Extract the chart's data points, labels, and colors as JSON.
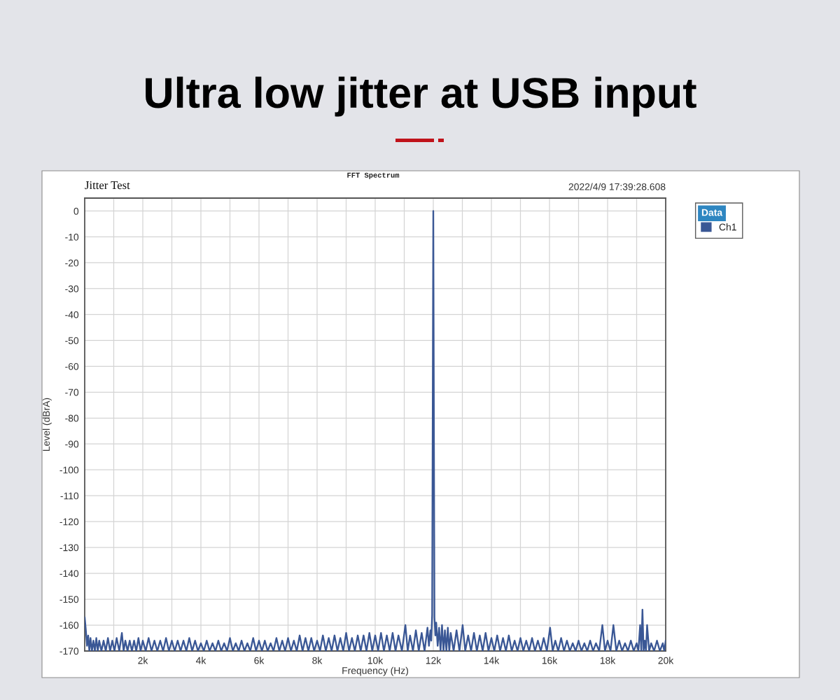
{
  "chart_data": {
    "type": "line",
    "title": "Ultra low jitter at USB input",
    "subtitle": "FFT Spectrum",
    "annotations": [
      "Jitter Test",
      "2022/4/9 17:39:28.608"
    ],
    "xlabel": "Frequency (Hz)",
    "ylabel": "Level (dBrA)",
    "legend_title": "Data",
    "legend": "right",
    "grid": true,
    "xlim": [
      0,
      20000
    ],
    "ylim": [
      -170,
      5
    ],
    "xticks": [
      {
        "value": 1000,
        "label": null
      },
      {
        "value": 2000,
        "label": "2k"
      },
      {
        "value": 3000,
        "label": null
      },
      {
        "value": 4000,
        "label": "4k"
      },
      {
        "value": 5000,
        "label": null
      },
      {
        "value": 6000,
        "label": "6k"
      },
      {
        "value": 7000,
        "label": null
      },
      {
        "value": 8000,
        "label": "8k"
      },
      {
        "value": 9000,
        "label": null
      },
      {
        "value": 10000,
        "label": "10k"
      },
      {
        "value": 11000,
        "label": null
      },
      {
        "value": 12000,
        "label": "12k"
      },
      {
        "value": 13000,
        "label": null
      },
      {
        "value": 14000,
        "label": "14k"
      },
      {
        "value": 15000,
        "label": null
      },
      {
        "value": 16000,
        "label": "16k"
      },
      {
        "value": 17000,
        "label": null
      },
      {
        "value": 18000,
        "label": "18k"
      },
      {
        "value": 19000,
        "label": null
      },
      {
        "value": 20000,
        "label": "20k"
      }
    ],
    "yticks": [
      0,
      -10,
      -20,
      -30,
      -40,
      -50,
      -60,
      -70,
      -80,
      -90,
      -100,
      -110,
      -120,
      -130,
      -140,
      -150,
      -160,
      -170
    ],
    "x": [
      0,
      40,
      80,
      120,
      160,
      200,
      250,
      300,
      350,
      400,
      450,
      500,
      575,
      650,
      725,
      800,
      875,
      950,
      1025,
      1100,
      1190,
      1280,
      1340,
      1400,
      1475,
      1550,
      1625,
      1700,
      1775,
      1850,
      1925,
      2000,
      2100,
      2200,
      2300,
      2400,
      2500,
      2600,
      2700,
      2800,
      2900,
      3000,
      3100,
      3200,
      3300,
      3400,
      3500,
      3600,
      3700,
      3800,
      3900,
      4000,
      4100,
      4200,
      4300,
      4400,
      4500,
      4600,
      4700,
      4800,
      4900,
      5000,
      5100,
      5200,
      5300,
      5400,
      5500,
      5600,
      5700,
      5800,
      5900,
      6000,
      6100,
      6200,
      6300,
      6400,
      6500,
      6600,
      6700,
      6800,
      6900,
      7000,
      7100,
      7200,
      7300,
      7400,
      7500,
      7600,
      7700,
      7800,
      7900,
      8000,
      8100,
      8200,
      8300,
      8400,
      8500,
      8600,
      8700,
      8800,
      8900,
      9000,
      9100,
      9200,
      9300,
      9400,
      9500,
      9600,
      9700,
      9800,
      9900,
      10000,
      10100,
      10200,
      10300,
      10400,
      10500,
      10600,
      10700,
      10800,
      10920,
      11040,
      11120,
      11200,
      11300,
      11400,
      11500,
      11600,
      11700,
      11800,
      11850,
      11900,
      11930,
      11960,
      12000,
      12040,
      12070,
      12100,
      12150,
      12200,
      12250,
      12300,
      12350,
      12400,
      12450,
      12500,
      12550,
      12600,
      12700,
      12800,
      12900,
      13010,
      13100,
      13200,
      13300,
      13400,
      13500,
      13600,
      13700,
      13800,
      13900,
      14000,
      14100,
      14200,
      14300,
      14400,
      14500,
      14600,
      14700,
      14800,
      14900,
      15000,
      15100,
      15200,
      15300,
      15400,
      15500,
      15600,
      15700,
      15800,
      15910,
      16020,
      16110,
      16200,
      16300,
      16400,
      16500,
      16600,
      16700,
      16800,
      16900,
      17000,
      17100,
      17200,
      17300,
      17400,
      17500,
      17600,
      17710,
      17820,
      17910,
      18000,
      18100,
      18200,
      18300,
      18400,
      18500,
      18600,
      18700,
      18800,
      18900,
      19000,
      19060,
      19120,
      19160,
      19200,
      19240,
      19280,
      19320,
      19360,
      19430,
      19500,
      19600,
      19700,
      19800,
      19900,
      19950,
      20000
    ],
    "series": [
      {
        "name": "Ch1",
        "color": "#3a5795",
        "values": [
          -157,
          -162,
          -168,
          -164,
          -170,
          -165,
          -170,
          -166,
          -170,
          -165,
          -170,
          -166,
          -170,
          -166,
          -170,
          -165,
          -170,
          -166,
          -170,
          -165,
          -170,
          -163,
          -170,
          -166,
          -170,
          -166,
          -170,
          -166,
          -170,
          -165,
          -170,
          -166,
          -170,
          -165,
          -170,
          -166,
          -170,
          -166,
          -170,
          -165,
          -170,
          -166,
          -170,
          -166,
          -170,
          -166,
          -170,
          -165,
          -170,
          -166,
          -170,
          -167,
          -170,
          -166,
          -170,
          -167,
          -170,
          -166,
          -170,
          -167,
          -170,
          -165,
          -170,
          -167,
          -170,
          -166,
          -170,
          -167,
          -170,
          -165,
          -170,
          -166,
          -170,
          -166,
          -170,
          -167,
          -170,
          -165,
          -170,
          -166,
          -170,
          -165,
          -170,
          -166,
          -170,
          -164,
          -170,
          -165,
          -170,
          -165,
          -170,
          -166,
          -170,
          -164,
          -170,
          -165,
          -170,
          -164,
          -170,
          -165,
          -170,
          -163,
          -170,
          -165,
          -170,
          -164,
          -170,
          -164,
          -170,
          -163,
          -170,
          -164,
          -170,
          -163,
          -170,
          -164,
          -170,
          -163,
          -170,
          -164,
          -170,
          -160,
          -170,
          -164,
          -170,
          -162,
          -170,
          -163,
          -170,
          -161,
          -168,
          -162,
          -166,
          -156,
          0,
          -157,
          -164,
          -159,
          -168,
          -161,
          -170,
          -160,
          -170,
          -162,
          -170,
          -161,
          -170,
          -163,
          -170,
          -162,
          -170,
          -160,
          -170,
          -164,
          -170,
          -163,
          -170,
          -164,
          -170,
          -163,
          -170,
          -165,
          -170,
          -164,
          -170,
          -165,
          -170,
          -164,
          -170,
          -166,
          -170,
          -165,
          -170,
          -166,
          -170,
          -165,
          -170,
          -166,
          -170,
          -165,
          -170,
          -161,
          -170,
          -166,
          -170,
          -165,
          -170,
          -166,
          -170,
          -167,
          -170,
          -166,
          -170,
          -167,
          -170,
          -166,
          -170,
          -167,
          -170,
          -160,
          -170,
          -166,
          -170,
          -160,
          -170,
          -166,
          -170,
          -167,
          -170,
          -166,
          -170,
          -167,
          -170,
          -160,
          -170,
          -154,
          -170,
          -166,
          -170,
          -160,
          -170,
          -167,
          -170,
          -166,
          -170,
          -167,
          -170,
          -166
        ]
      }
    ]
  }
}
